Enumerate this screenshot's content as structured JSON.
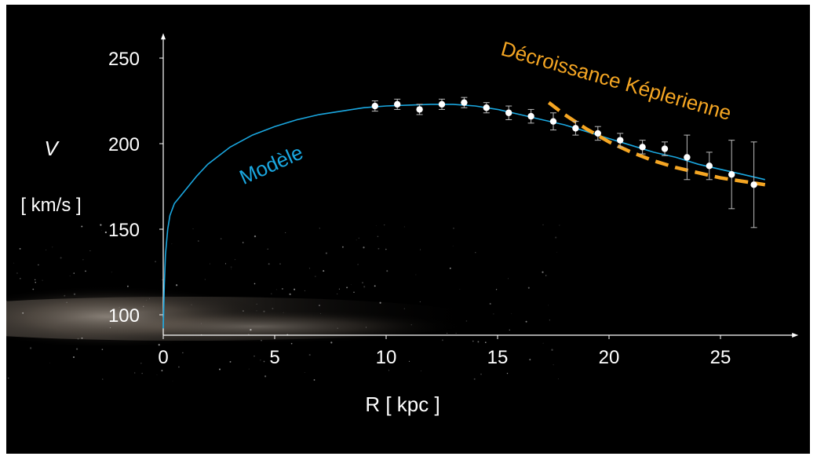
{
  "chart_data": {
    "type": "scatter",
    "xlabel": "R [ kpc ]",
    "ylabel_symbol": "V",
    "ylabel_unit": "[ km/s ]",
    "xlim": [
      0,
      28
    ],
    "ylim": [
      92,
      260
    ],
    "x_ticks": [
      0,
      5,
      10,
      15,
      20,
      25
    ],
    "y_ticks": [
      100,
      150,
      200,
      250
    ],
    "grid": false,
    "background": "#000000",
    "axis_color": "#ffffff",
    "series": [
      {
        "name": "Modèle",
        "kind": "curve",
        "color": "#1aa7e0",
        "x": [
          0,
          0.05,
          0.1,
          0.2,
          0.3,
          0.5,
          0.75,
          1,
          1.5,
          2,
          3,
          4,
          5,
          6,
          7,
          8,
          9,
          10,
          11,
          12,
          13,
          14,
          15,
          16,
          17,
          18,
          19,
          20,
          21,
          22,
          23,
          24,
          25,
          26,
          27
        ],
        "y": [
          92,
          118,
          135,
          150,
          158,
          165,
          169,
          173,
          181,
          188,
          198,
          205,
          210,
          214,
          217,
          219,
          221,
          222,
          222.5,
          223,
          223,
          222,
          220,
          217,
          214,
          211,
          207,
          203,
          199,
          195,
          192,
          188,
          185,
          182,
          179
        ]
      },
      {
        "name": "Décroissance Képlerienne",
        "kind": "dashed-line",
        "color": "#f5a623",
        "x": [
          17.3,
          18,
          19,
          20,
          21,
          22,
          23,
          24,
          25,
          26,
          27
        ],
        "y": [
          224,
          217,
          208.5,
          201,
          195,
          190,
          186,
          183,
          180,
          178,
          176
        ]
      },
      {
        "name": "",
        "kind": "points-with-errorbars",
        "color": "#ffffff",
        "x": [
          9.5,
          10.5,
          11.5,
          12.5,
          13.5,
          14.5,
          15.5,
          16.5,
          17.5,
          18.5,
          19.5,
          20.5,
          21.5,
          22.5,
          23.5,
          24.5,
          25.5,
          26.5
        ],
        "y": [
          222,
          223,
          220,
          223,
          224,
          221,
          218,
          216,
          213,
          209,
          206,
          202,
          198,
          197,
          192,
          187,
          182,
          176
        ],
        "yerr": [
          3,
          3,
          3,
          3,
          3,
          3,
          4,
          4,
          5,
          4,
          4,
          4,
          4,
          4,
          13,
          8,
          20,
          25
        ]
      }
    ]
  }
}
